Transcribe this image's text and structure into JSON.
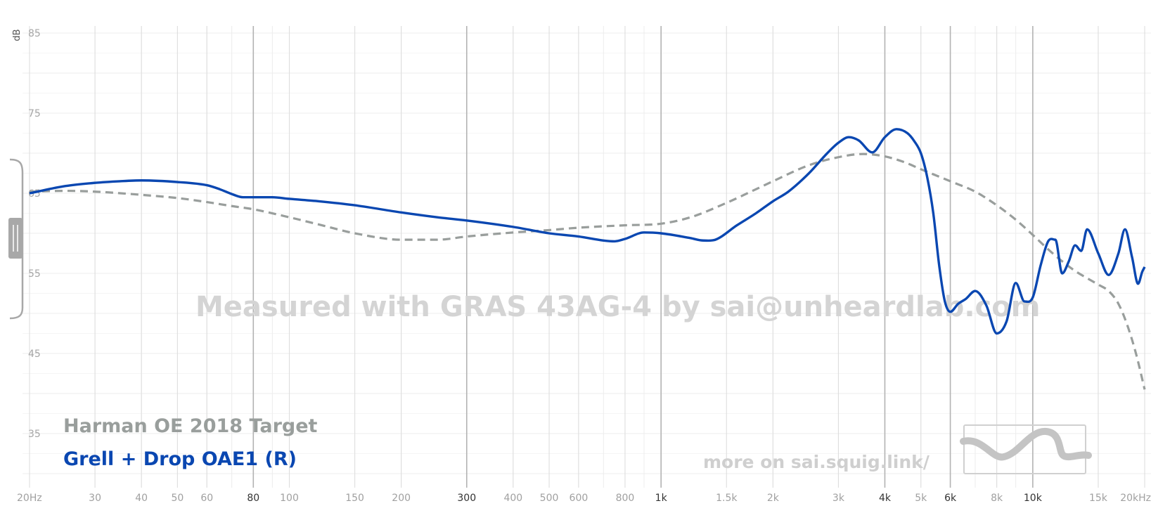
{
  "chart_data": {
    "type": "line",
    "ylabel": "dB",
    "xlabel": "",
    "xscale": "log",
    "xlim": [
      20,
      20000
    ],
    "ylim": [
      30,
      85
    ],
    "yticks": [
      35,
      45,
      55,
      65,
      75,
      85
    ],
    "xticks": [
      {
        "value": 20,
        "label": "20Hz",
        "major": false
      },
      {
        "value": 30,
        "label": "30",
        "major": false
      },
      {
        "value": 40,
        "label": "40",
        "major": false
      },
      {
        "value": 50,
        "label": "50",
        "major": false
      },
      {
        "value": 60,
        "label": "60",
        "major": false
      },
      {
        "value": 80,
        "label": "80",
        "major": true
      },
      {
        "value": 100,
        "label": "100",
        "major": false
      },
      {
        "value": 150,
        "label": "150",
        "major": false
      },
      {
        "value": 200,
        "label": "200",
        "major": false
      },
      {
        "value": 300,
        "label": "300",
        "major": true
      },
      {
        "value": 400,
        "label": "400",
        "major": false
      },
      {
        "value": 500,
        "label": "500",
        "major": false
      },
      {
        "value": 600,
        "label": "600",
        "major": false
      },
      {
        "value": 800,
        "label": "800",
        "major": false
      },
      {
        "value": 1000,
        "label": "1k",
        "major": true
      },
      {
        "value": 1500,
        "label": "1.5k",
        "major": false
      },
      {
        "value": 2000,
        "label": "2k",
        "major": false
      },
      {
        "value": 3000,
        "label": "3k",
        "major": false
      },
      {
        "value": 4000,
        "label": "4k",
        "major": true
      },
      {
        "value": 5000,
        "label": "5k",
        "major": false
      },
      {
        "value": 6000,
        "label": "6k",
        "major": true
      },
      {
        "value": 8000,
        "label": "8k",
        "major": false
      },
      {
        "value": 10000,
        "label": "10k",
        "major": true
      },
      {
        "value": 15000,
        "label": "15k",
        "major": false
      },
      {
        "value": 20000,
        "label": "20kHz",
        "major": false
      }
    ],
    "grid": true,
    "legend_position": "bottom-left",
    "watermark": "Measured with GRAS 43AG-4 by sai@unheardlab.com",
    "footer_text": "more on sai.squig.link/",
    "series": [
      {
        "name": "Harman OE 2018 Target",
        "color": "#999e9c",
        "style": "dashed",
        "x": [
          20,
          25,
          30,
          40,
          50,
          60,
          70,
          80,
          100,
          120,
          150,
          200,
          250,
          300,
          400,
          500,
          600,
          800,
          1000,
          1200,
          1500,
          1800,
          2000,
          2500,
          3000,
          3500,
          4000,
          4500,
          5000,
          6000,
          7000,
          8000,
          9000,
          10000,
          11000,
          12000,
          13000,
          14000,
          15000,
          16000,
          17000,
          18000,
          19000,
          20000
        ],
        "values": [
          65.2,
          65.3,
          65.2,
          64.8,
          64.4,
          63.9,
          63.4,
          63.0,
          62.0,
          61.1,
          60.0,
          59.2,
          59.2,
          59.6,
          60.1,
          60.4,
          60.7,
          61.0,
          61.2,
          62.0,
          63.8,
          65.5,
          66.5,
          68.5,
          69.5,
          69.9,
          69.6,
          68.9,
          68.0,
          66.5,
          65.2,
          63.5,
          61.7,
          59.8,
          58.0,
          56.5,
          55.3,
          54.4,
          53.6,
          52.8,
          51.2,
          48.4,
          44.8,
          40.5
        ]
      },
      {
        "name": "Grell + Drop OAE1 (R)",
        "color": "#0a47b1",
        "style": "solid",
        "x": [
          20,
          25,
          30,
          35,
          40,
          50,
          60,
          65,
          70,
          75,
          80,
          90,
          100,
          120,
          150,
          200,
          250,
          300,
          400,
          500,
          600,
          700,
          750,
          800,
          900,
          1000,
          1200,
          1300,
          1400,
          1600,
          1800,
          2000,
          2200,
          2500,
          2800,
          3000,
          3200,
          3400,
          3700,
          4000,
          4300,
          4600,
          4800,
          5000,
          5200,
          5400,
          5600,
          5800,
          6000,
          6300,
          6600,
          7000,
          7500,
          8000,
          8500,
          9000,
          9500,
          10000,
          10500,
          11000,
          11500,
          12000,
          12500,
          13000,
          13500,
          14000,
          15000,
          16000,
          17000,
          17700,
          18500,
          19200,
          19700,
          20000
        ],
        "values": [
          65.0,
          65.9,
          66.3,
          66.5,
          66.6,
          66.4,
          66.0,
          65.5,
          64.9,
          64.5,
          64.5,
          64.5,
          64.3,
          64.0,
          63.5,
          62.6,
          62.0,
          61.6,
          60.8,
          60.0,
          59.6,
          59.1,
          59.0,
          59.3,
          60.1,
          60.0,
          59.4,
          59.1,
          59.2,
          61.0,
          62.5,
          64.0,
          65.2,
          67.5,
          70.0,
          71.3,
          72.0,
          71.6,
          70.1,
          72.0,
          73.0,
          72.5,
          71.5,
          70.0,
          67.0,
          62.5,
          56.0,
          51.5,
          50.2,
          51.2,
          51.8,
          52.8,
          51.0,
          47.5,
          49.0,
          53.8,
          51.5,
          52.0,
          56.0,
          59.0,
          59.2,
          55.0,
          56.5,
          58.5,
          57.8,
          60.5,
          57.5,
          54.8,
          57.5,
          60.5,
          57.0,
          53.7,
          55.2,
          55.8
        ]
      }
    ]
  }
}
